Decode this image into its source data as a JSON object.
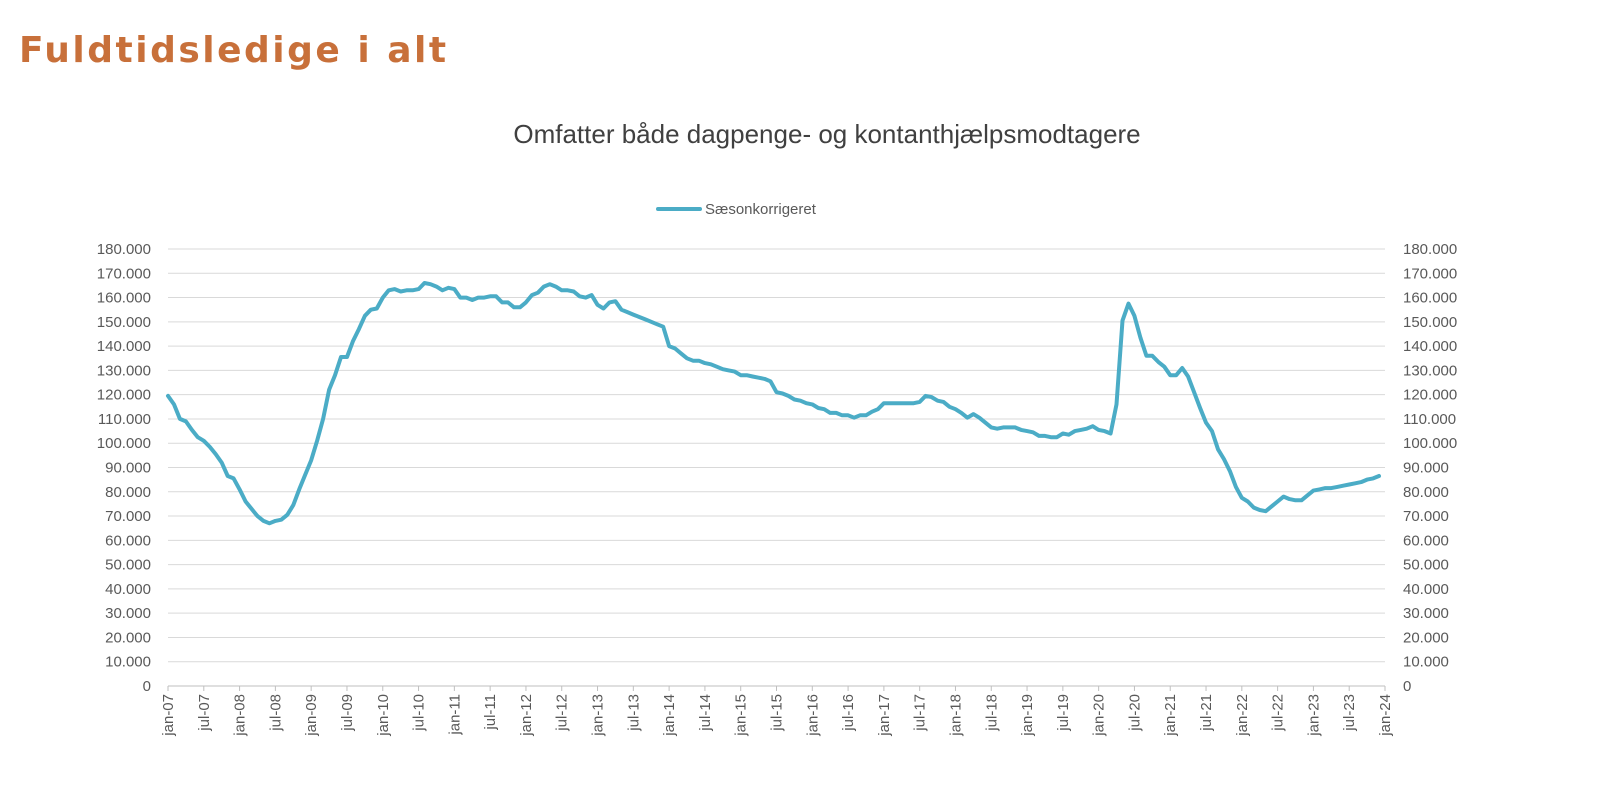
{
  "heading": "Fuldtidsledige i alt",
  "chart_data": {
    "type": "line",
    "title": "Omfatter både dagpenge- og kontanthjælpsmodtagere",
    "xlabel": "",
    "ylabel": "",
    "ylim": [
      0,
      180000
    ],
    "y_ticks": [
      "0",
      "10.000",
      "20.000",
      "30.000",
      "40.000",
      "50.000",
      "60.000",
      "70.000",
      "80.000",
      "90.000",
      "100.000",
      "110.000",
      "120.000",
      "130.000",
      "140.000",
      "150.000",
      "160.000",
      "170.000",
      "180.000"
    ],
    "y_tick_values": [
      0,
      10000,
      20000,
      30000,
      40000,
      50000,
      60000,
      70000,
      80000,
      90000,
      100000,
      110000,
      120000,
      130000,
      140000,
      150000,
      160000,
      170000,
      180000
    ],
    "secondary_y_axis": "mirror of primary",
    "x_ticks": [
      "jan-07",
      "jul-07",
      "jan-08",
      "jul-08",
      "jan-09",
      "jul-09",
      "jan-10",
      "jul-10",
      "jan-11",
      "jul-11",
      "jan-12",
      "jul-12",
      "jan-13",
      "jul-13",
      "jan-14",
      "jul-14",
      "jan-15",
      "jul-15",
      "jan-16",
      "jul-16",
      "jan-17",
      "jul-17",
      "jan-18",
      "jul-18",
      "jan-19",
      "jul-19",
      "jan-20",
      "jul-20",
      "jan-21",
      "jul-21",
      "jan-22",
      "jul-22",
      "jan-23",
      "jul-23",
      "jan-24"
    ],
    "xlim": [
      "2007-01",
      "2024-01"
    ],
    "grid": true,
    "legend_position": "top",
    "series": [
      {
        "name": "Sæsonkorrigeret",
        "color": "#4BACC6",
        "points": [
          [
            "2007-01",
            119500
          ],
          [
            "2007-02",
            116000
          ],
          [
            "2007-03",
            110000
          ],
          [
            "2007-04",
            109000
          ],
          [
            "2007-05",
            105500
          ],
          [
            "2007-06",
            102500
          ],
          [
            "2007-07",
            101000
          ],
          [
            "2007-08",
            98500
          ],
          [
            "2007-09",
            95500
          ],
          [
            "2007-10",
            92000
          ],
          [
            "2007-11",
            86500
          ],
          [
            "2007-12",
            85500
          ],
          [
            "2008-01",
            81000
          ],
          [
            "2008-02",
            76000
          ],
          [
            "2008-03",
            73000
          ],
          [
            "2008-04",
            70000
          ],
          [
            "2008-05",
            68000
          ],
          [
            "2008-06",
            67000
          ],
          [
            "2008-07",
            68000
          ],
          [
            "2008-08",
            68500
          ],
          [
            "2008-09",
            70500
          ],
          [
            "2008-10",
            74500
          ],
          [
            "2008-11",
            81000
          ],
          [
            "2008-12",
            87000
          ],
          [
            "2009-01",
            93000
          ],
          [
            "2009-02",
            101000
          ],
          [
            "2009-03",
            110000
          ],
          [
            "2009-04",
            122000
          ],
          [
            "2009-05",
            128000
          ],
          [
            "2009-06",
            135500
          ],
          [
            "2009-07",
            135500
          ],
          [
            "2009-08",
            142000
          ],
          [
            "2009-09",
            147000
          ],
          [
            "2009-10",
            152500
          ],
          [
            "2009-11",
            155000
          ],
          [
            "2009-12",
            155500
          ],
          [
            "2010-01",
            160000
          ],
          [
            "2010-02",
            163000
          ],
          [
            "2010-03",
            163500
          ],
          [
            "2010-04",
            162500
          ],
          [
            "2010-05",
            163000
          ],
          [
            "2010-06",
            163000
          ],
          [
            "2010-07",
            163500
          ],
          [
            "2010-08",
            166000
          ],
          [
            "2010-09",
            165500
          ],
          [
            "2010-10",
            164500
          ],
          [
            "2010-11",
            163000
          ],
          [
            "2010-12",
            164000
          ],
          [
            "2011-01",
            163500
          ],
          [
            "2011-02",
            160000
          ],
          [
            "2011-03",
            160000
          ],
          [
            "2011-04",
            159000
          ],
          [
            "2011-05",
            160000
          ],
          [
            "2011-06",
            160000
          ],
          [
            "2011-07",
            160500
          ],
          [
            "2011-08",
            160500
          ],
          [
            "2011-09",
            158000
          ],
          [
            "2011-10",
            158000
          ],
          [
            "2011-11",
            156000
          ],
          [
            "2011-12",
            156000
          ],
          [
            "2012-01",
            158000
          ],
          [
            "2012-02",
            161000
          ],
          [
            "2012-03",
            162000
          ],
          [
            "2012-04",
            164500
          ],
          [
            "2012-05",
            165500
          ],
          [
            "2012-06",
            164500
          ],
          [
            "2012-07",
            163000
          ],
          [
            "2012-08",
            163000
          ],
          [
            "2012-09",
            162500
          ],
          [
            "2012-10",
            160500
          ],
          [
            "2012-11",
            160000
          ],
          [
            "2012-12",
            161000
          ],
          [
            "2013-01",
            157000
          ],
          [
            "2013-02",
            155500
          ],
          [
            "2013-03",
            158000
          ],
          [
            "2013-04",
            158500
          ],
          [
            "2013-05",
            155000
          ],
          [
            "2013-06",
            154000
          ],
          [
            "2013-07",
            153000
          ],
          [
            "2013-08",
            152000
          ],
          [
            "2013-09",
            151000
          ],
          [
            "2013-10",
            150000
          ],
          [
            "2013-11",
            149000
          ],
          [
            "2013-12",
            148000
          ],
          [
            "2014-01",
            140000
          ],
          [
            "2014-02",
            139000
          ],
          [
            "2014-03",
            137000
          ],
          [
            "2014-04",
            135000
          ],
          [
            "2014-05",
            134000
          ],
          [
            "2014-06",
            134000
          ],
          [
            "2014-07",
            133000
          ],
          [
            "2014-08",
            132500
          ],
          [
            "2014-09",
            131500
          ],
          [
            "2014-10",
            130500
          ],
          [
            "2014-11",
            130000
          ],
          [
            "2014-12",
            129500
          ],
          [
            "2015-01",
            128000
          ],
          [
            "2015-02",
            128000
          ],
          [
            "2015-03",
            127500
          ],
          [
            "2015-04",
            127000
          ],
          [
            "2015-05",
            126500
          ],
          [
            "2015-06",
            125500
          ],
          [
            "2015-07",
            121000
          ],
          [
            "2015-08",
            120500
          ],
          [
            "2015-09",
            119500
          ],
          [
            "2015-10",
            118000
          ],
          [
            "2015-11",
            117500
          ],
          [
            "2015-12",
            116500
          ],
          [
            "2016-01",
            116000
          ],
          [
            "2016-02",
            114500
          ],
          [
            "2016-03",
            114000
          ],
          [
            "2016-04",
            112500
          ],
          [
            "2016-05",
            112500
          ],
          [
            "2016-06",
            111500
          ],
          [
            "2016-07",
            111500
          ],
          [
            "2016-08",
            110500
          ],
          [
            "2016-09",
            111500
          ],
          [
            "2016-10",
            111500
          ],
          [
            "2016-11",
            113000
          ],
          [
            "2016-12",
            114000
          ],
          [
            "2017-01",
            116500
          ],
          [
            "2017-02",
            116500
          ],
          [
            "2017-03",
            116500
          ],
          [
            "2017-04",
            116500
          ],
          [
            "2017-05",
            116500
          ],
          [
            "2017-06",
            116500
          ],
          [
            "2017-07",
            117000
          ],
          [
            "2017-08",
            119500
          ],
          [
            "2017-09",
            119000
          ],
          [
            "2017-10",
            117500
          ],
          [
            "2017-11",
            117000
          ],
          [
            "2017-12",
            115000
          ],
          [
            "2018-01",
            114000
          ],
          [
            "2018-02",
            112500
          ],
          [
            "2018-03",
            110500
          ],
          [
            "2018-04",
            112000
          ],
          [
            "2018-05",
            110500
          ],
          [
            "2018-06",
            108500
          ],
          [
            "2018-07",
            106500
          ],
          [
            "2018-08",
            106000
          ],
          [
            "2018-09",
            106500
          ],
          [
            "2018-10",
            106500
          ],
          [
            "2018-11",
            106500
          ],
          [
            "2018-12",
            105500
          ],
          [
            "2019-01",
            105000
          ],
          [
            "2019-02",
            104500
          ],
          [
            "2019-03",
            103000
          ],
          [
            "2019-04",
            103000
          ],
          [
            "2019-05",
            102500
          ],
          [
            "2019-06",
            102500
          ],
          [
            "2019-07",
            104000
          ],
          [
            "2019-08",
            103500
          ],
          [
            "2019-09",
            105000
          ],
          [
            "2019-10",
            105500
          ],
          [
            "2019-11",
            106000
          ],
          [
            "2019-12",
            107000
          ],
          [
            "2020-01",
            105500
          ],
          [
            "2020-02",
            105000
          ],
          [
            "2020-03",
            104000
          ],
          [
            "2020-04",
            116000
          ],
          [
            "2020-05",
            150500
          ],
          [
            "2020-06",
            157500
          ],
          [
            "2020-07",
            152500
          ],
          [
            "2020-08",
            143500
          ],
          [
            "2020-09",
            136000
          ],
          [
            "2020-10",
            136000
          ],
          [
            "2020-11",
            133500
          ],
          [
            "2020-12",
            131500
          ],
          [
            "2021-01",
            128000
          ],
          [
            "2021-02",
            128000
          ],
          [
            "2021-03",
            131000
          ],
          [
            "2021-04",
            127500
          ],
          [
            "2021-05",
            121000
          ],
          [
            "2021-06",
            114500
          ],
          [
            "2021-07",
            108500
          ],
          [
            "2021-08",
            105000
          ],
          [
            "2021-09",
            97500
          ],
          [
            "2021-10",
            93500
          ],
          [
            "2021-11",
            88500
          ],
          [
            "2021-12",
            82000
          ],
          [
            "2022-01",
            77500
          ],
          [
            "2022-02",
            76000
          ],
          [
            "2022-03",
            73500
          ],
          [
            "2022-04",
            72500
          ],
          [
            "2022-05",
            72000
          ],
          [
            "2022-06",
            74000
          ],
          [
            "2022-07",
            76000
          ],
          [
            "2022-08",
            78000
          ],
          [
            "2022-09",
            77000
          ],
          [
            "2022-10",
            76500
          ],
          [
            "2022-11",
            76500
          ],
          [
            "2022-12",
            78500
          ],
          [
            "2023-01",
            80500
          ],
          [
            "2023-02",
            81000
          ],
          [
            "2023-03",
            81500
          ],
          [
            "2023-04",
            81500
          ],
          [
            "2023-05",
            82000
          ],
          [
            "2023-06",
            82500
          ],
          [
            "2023-07",
            83000
          ],
          [
            "2023-08",
            83500
          ],
          [
            "2023-09",
            84000
          ],
          [
            "2023-10",
            85000
          ],
          [
            "2023-11",
            85500
          ],
          [
            "2023-12",
            86500
          ]
        ]
      }
    ]
  }
}
